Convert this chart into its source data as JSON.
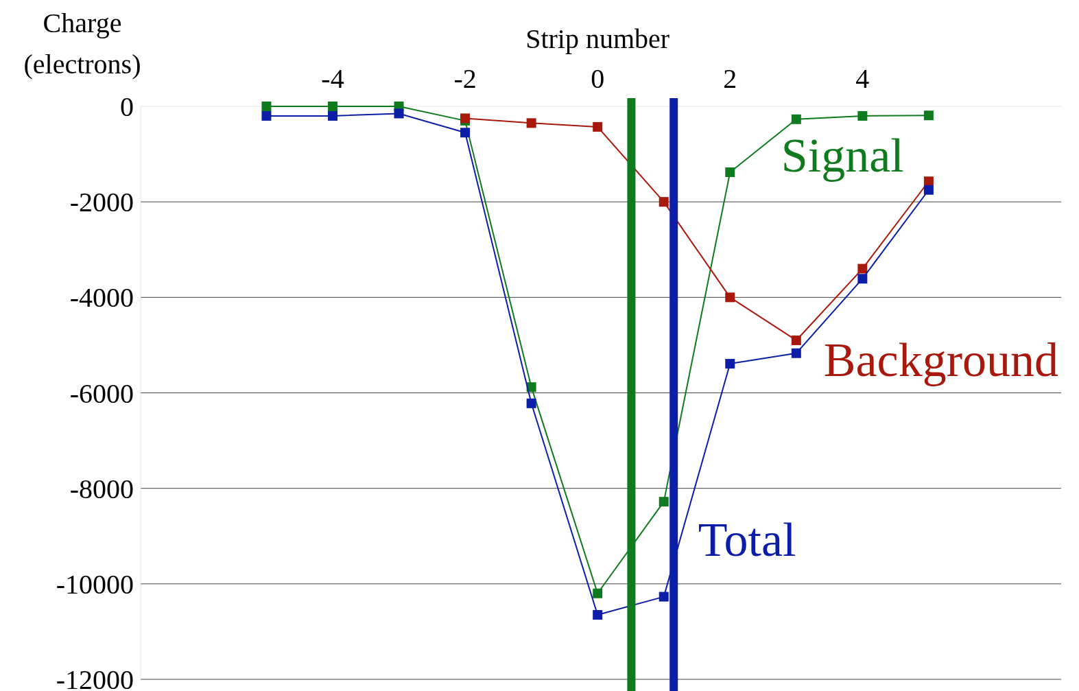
{
  "chart_data": {
    "type": "line",
    "xlabel": "Strip number",
    "ylabel": "Charge (electrons)",
    "x": [
      -5,
      -4,
      -3,
      -2,
      -1,
      0,
      1,
      2,
      3,
      4,
      5
    ],
    "series": [
      {
        "name": "Signal",
        "color": "#0f7a1e",
        "values": [
          0,
          0,
          0,
          -300,
          -5880,
          -10200,
          -8280,
          -1380,
          -270,
          -200,
          -190
        ]
      },
      {
        "name": "Background",
        "color": "#a8180c",
        "values": [
          null,
          null,
          null,
          -250,
          -350,
          -430,
          -2000,
          -4000,
          -4900,
          -3400,
          -1570
        ]
      },
      {
        "name": "Total",
        "color": "#0c1ea8",
        "values": [
          -200,
          -200,
          -150,
          -550,
          -6220,
          -10650,
          -10270,
          -5390,
          -5170,
          -3610,
          -1750
        ]
      }
    ],
    "xlim": [
      -6.9,
      7
    ],
    "xticks": [
      -4,
      -2,
      0,
      2,
      4
    ],
    "ylim": [
      -12000,
      0
    ],
    "yticks": [
      0,
      -2000,
      -4000,
      -6000,
      -8000,
      -10000,
      -12000
    ],
    "grid": "y",
    "marker": "square",
    "ref_lines": [
      {
        "axis": "x",
        "value": 0.51,
        "color": "#0f7a1e"
      },
      {
        "axis": "x",
        "value": 1.15,
        "color": "#0c1ea8"
      }
    ]
  }
}
